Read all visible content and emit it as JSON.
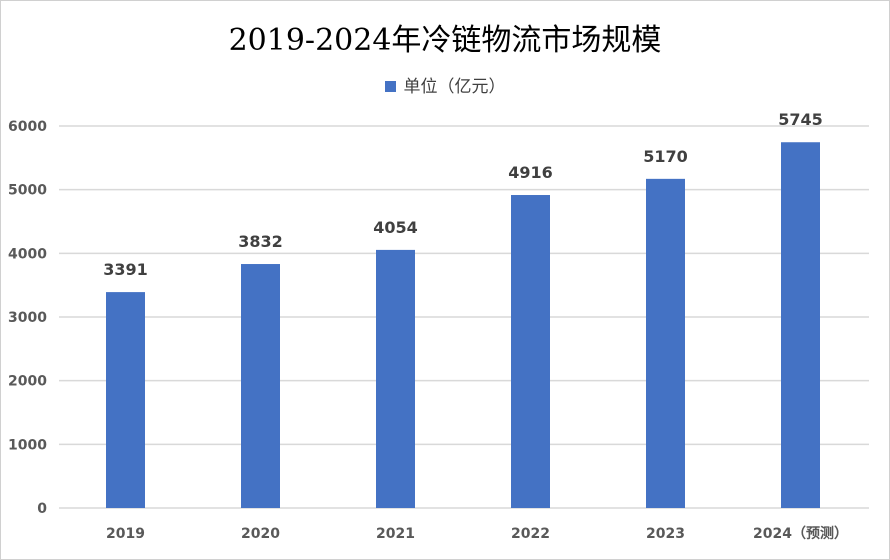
{
  "chart_data": {
    "type": "bar",
    "title": "2019-2024年冷链物流市场规模",
    "categories": [
      "2019",
      "2020",
      "2021",
      "2022",
      "2023",
      "2024（预测）"
    ],
    "series": [
      {
        "name": "单位（亿元）",
        "values": [
          3391,
          3832,
          4054,
          4916,
          5170,
          5745
        ],
        "color": "#4472c4"
      }
    ],
    "xlabel": "",
    "ylabel": "",
    "ylim": [
      0,
      6000
    ],
    "yticks": [
      0,
      1000,
      2000,
      3000,
      4000,
      5000,
      6000
    ],
    "grid": true,
    "legend": "top",
    "data_labels": true
  }
}
